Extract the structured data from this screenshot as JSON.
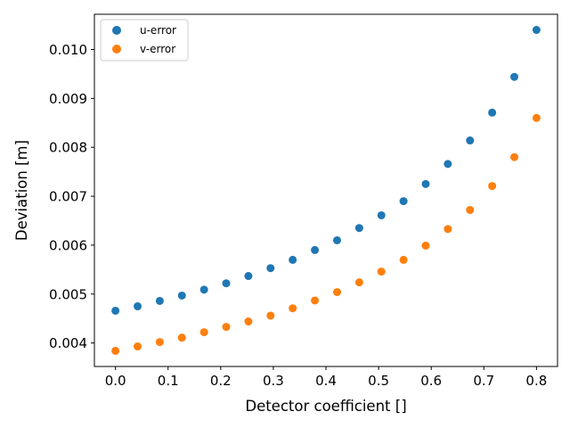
{
  "chart_data": {
    "type": "scatter",
    "title": "",
    "xlabel": "Detector coefficient []",
    "ylabel": "Deviation [m]",
    "xlim": [
      -0.04,
      0.84
    ],
    "ylim": [
      0.00352,
      0.01072
    ],
    "xticks": [
      0.0,
      0.1,
      0.2,
      0.3,
      0.4,
      0.5,
      0.6,
      0.7,
      0.8
    ],
    "xtick_labels": [
      "0.0",
      "0.1",
      "0.2",
      "0.3",
      "0.4",
      "0.5",
      "0.6",
      "0.7",
      "0.8"
    ],
    "yticks": [
      0.004,
      0.005,
      0.006,
      0.007,
      0.008,
      0.009,
      0.01
    ],
    "ytick_labels": [
      "0.004",
      "0.005",
      "0.006",
      "0.007",
      "0.008",
      "0.009",
      "0.010"
    ],
    "legend_position": "top-left",
    "x": [
      0.0,
      0.0421,
      0.0842,
      0.1263,
      0.1684,
      0.2105,
      0.2526,
      0.2947,
      0.3368,
      0.3789,
      0.4211,
      0.4632,
      0.5053,
      0.5474,
      0.5895,
      0.6316,
      0.6737,
      0.7158,
      0.7579,
      0.8
    ],
    "series": [
      {
        "name": "u-error",
        "color": "#1f77b4",
        "values": [
          0.00466,
          0.00475,
          0.00486,
          0.00497,
          0.00509,
          0.00522,
          0.00537,
          0.00553,
          0.0057,
          0.0059,
          0.0061,
          0.00635,
          0.00661,
          0.0069,
          0.00725,
          0.00766,
          0.00814,
          0.00871,
          0.00944,
          0.0104
        ]
      },
      {
        "name": "v-error",
        "color": "#ff7f0e",
        "values": [
          0.00384,
          0.00393,
          0.00402,
          0.00411,
          0.00422,
          0.00433,
          0.00444,
          0.00456,
          0.00471,
          0.00487,
          0.00504,
          0.00524,
          0.00546,
          0.0057,
          0.00599,
          0.00633,
          0.00672,
          0.00721,
          0.0078,
          0.0086
        ]
      }
    ]
  }
}
